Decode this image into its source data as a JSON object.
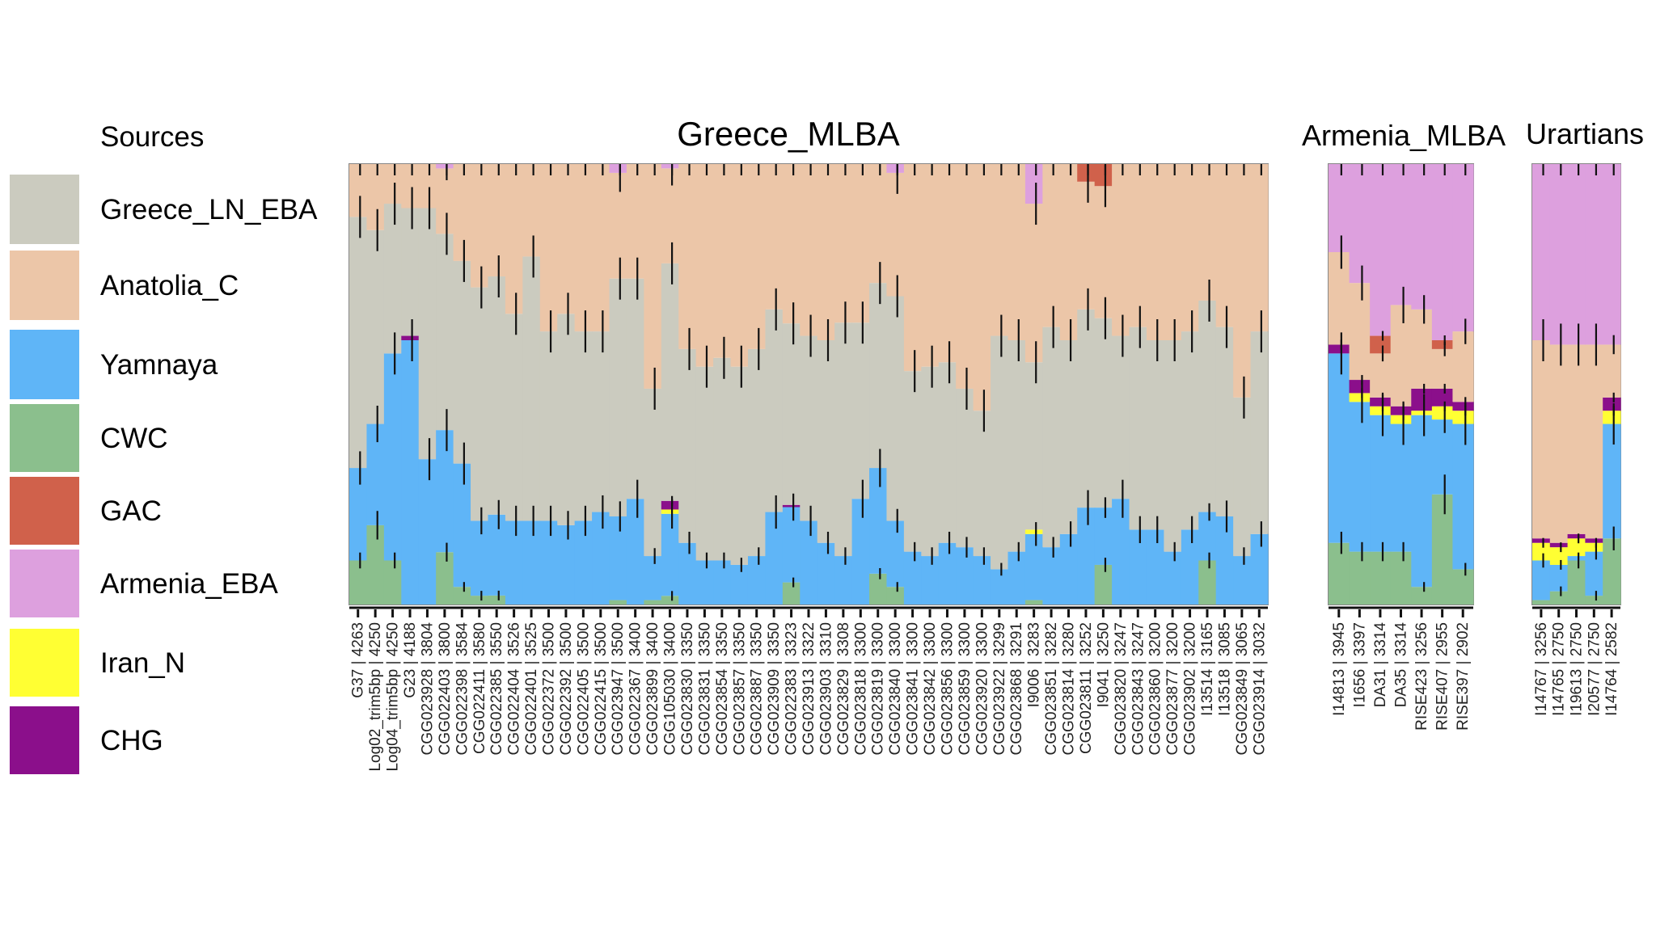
{
  "legend": {
    "title": "Sources",
    "items": [
      {
        "name": "Greece_LN_EBA",
        "color": "#cbcbbf"
      },
      {
        "name": "Anatolia_C",
        "color": "#ecc6a8"
      },
      {
        "name": "Yamnaya",
        "color": "#5fb5f7"
      },
      {
        "name": "CWC",
        "color": "#8bbf8d"
      },
      {
        "name": "GAC",
        "color": "#d0614b"
      },
      {
        "name": "Armenia_EBA",
        "color": "#dda0de"
      },
      {
        "name": "Iran_N",
        "color": "#ffff33"
      },
      {
        "name": "CHG",
        "color": "#8b0f8b"
      }
    ]
  },
  "chart_data": [
    {
      "type": "bar",
      "stacked": true,
      "title": "Greece_MLBA",
      "ylim": [
        0,
        1
      ],
      "source_order": [
        "CWC",
        "Yamnaya",
        "Iran_N",
        "CHG",
        "Greece_LN_EBA",
        "Anatolia_C",
        "GAC",
        "Armenia_EBA"
      ],
      "categories": [
        "G37 | 4263",
        "Log02_trim5bp | 4250",
        "Log04_trim5bp | 4250",
        "G23 | 4188",
        "CGG023928 | 3804",
        "CGG022403 | 3800",
        "CGG022398 | 3584",
        "CGG022411 | 3580",
        "CGG022385 | 3550",
        "CGG022404 | 3526",
        "CGG022401 | 3525",
        "CGG022372 | 3500",
        "CGG022392 | 3500",
        "CGG022405 | 3500",
        "CGG022415 | 3500",
        "CGG023947 | 3500",
        "CGG022367 | 3400",
        "CGG023899 | 3400",
        "CGG105030 | 3400",
        "CGG023830 | 3350",
        "CGG023831 | 3350",
        "CGG023854 | 3350",
        "CGG023857 | 3350",
        "CGG023887 | 3350",
        "CGG023909 | 3350",
        "CGG022383 | 3323",
        "CGG023913 | 3322",
        "CGG023903 | 3310",
        "CGG023829 | 3308",
        "CGG023818 | 3300",
        "CGG023819 | 3300",
        "CGG023840 | 3300",
        "CGG023841 | 3300",
        "CGG023842 | 3300",
        "CGG023856 | 3300",
        "CGG023859 | 3300",
        "CGG023920 | 3300",
        "CGG023922 | 3299",
        "CGG023868 | 3291",
        "I9006 | 3283",
        "CGG023851 | 3282",
        "CGG023814 | 3280",
        "CGG023811 | 3252",
        "I9041 | 3250",
        "CGG023820 | 3247",
        "CGG023843 | 3247",
        "CGG023860 | 3200",
        "CGG023877 | 3200",
        "CGG023902 | 3200",
        "I13514 | 3165",
        "I13518 | 3085",
        "CGG023849 | 3065",
        "CGG023914 | 3032"
      ],
      "series": [
        {
          "name": "CWC",
          "values": [
            0.1,
            0.18,
            0.1,
            0,
            0,
            0.12,
            0.04,
            0.02,
            0.02,
            0,
            0,
            0,
            0,
            0,
            0,
            0.01,
            0,
            0.01,
            0.02,
            0,
            0,
            0,
            0,
            0,
            0,
            0.05,
            0,
            0,
            0,
            0,
            0.07,
            0.04,
            0,
            0,
            0,
            0,
            0,
            0,
            0,
            0.01,
            0,
            0,
            0,
            0.09,
            0,
            0,
            0,
            0,
            0,
            0.1,
            0,
            0,
            0
          ]
        },
        {
          "name": "Yamnaya",
          "values": [
            0.21,
            0.23,
            0.47,
            0.6,
            0.33,
            0.28,
            0.28,
            0.17,
            0.18,
            0.19,
            0.19,
            0.19,
            0.18,
            0.19,
            0.21,
            0.19,
            0.24,
            0.1,
            0.19,
            0.14,
            0.1,
            0.1,
            0.09,
            0.11,
            0.21,
            0.17,
            0.19,
            0.14,
            0.11,
            0.24,
            0.24,
            0.15,
            0.12,
            0.11,
            0.14,
            0.13,
            0.11,
            0.08,
            0.12,
            0.15,
            0.13,
            0.16,
            0.22,
            0.13,
            0.24,
            0.17,
            0.17,
            0.12,
            0.17,
            0.11,
            0.2,
            0.11,
            0.16
          ]
        },
        {
          "name": "Iran_N",
          "values": [
            0,
            0,
            0,
            0,
            0,
            0,
            0,
            0,
            0,
            0,
            0,
            0,
            0,
            0,
            0,
            0,
            0,
            0,
            0.01,
            0,
            0,
            0,
            0,
            0,
            0,
            0,
            0,
            0,
            0,
            0,
            0,
            0,
            0,
            0,
            0,
            0,
            0,
            0,
            0,
            0.01,
            0,
            0,
            0,
            0,
            0,
            0,
            0,
            0,
            0,
            0,
            0,
            0,
            0
          ]
        },
        {
          "name": "CHG",
          "values": [
            0,
            0,
            0,
            0.01,
            0,
            0,
            0,
            0,
            0,
            0,
            0,
            0,
            0,
            0,
            0,
            0,
            0,
            0,
            0.02,
            0,
            0,
            0,
            0,
            0,
            0,
            0.005,
            0,
            0,
            0,
            0,
            0,
            0,
            0,
            0,
            0,
            0,
            0,
            0,
            0,
            0,
            0,
            0,
            0,
            0,
            0,
            0,
            0,
            0,
            0,
            0,
            0,
            0,
            0
          ]
        },
        {
          "name": "Greece_LN_EBA",
          "values": [
            0.57,
            0.44,
            0.34,
            0.29,
            0.57,
            0.45,
            0.46,
            0.53,
            0.53,
            0.47,
            0.6,
            0.43,
            0.48,
            0.43,
            0.41,
            0.54,
            0.5,
            0.38,
            0.55,
            0.44,
            0.44,
            0.46,
            0.45,
            0.47,
            0.46,
            0.41,
            0.42,
            0.46,
            0.53,
            0.4,
            0.42,
            0.51,
            0.41,
            0.43,
            0.41,
            0.36,
            0.33,
            0.53,
            0.48,
            0.38,
            0.5,
            0.44,
            0.45,
            0.43,
            0.37,
            0.46,
            0.43,
            0.48,
            0.45,
            0.48,
            0.43,
            0.36,
            0.46
          ]
        },
        {
          "name": "Anatolia_C",
          "values": [
            0.12,
            0.15,
            0.09,
            0.1,
            0.1,
            0.15,
            0.22,
            0.28,
            0.25,
            0.34,
            0.21,
            0.38,
            0.34,
            0.38,
            0.38,
            0.24,
            0.26,
            0.51,
            0.22,
            0.42,
            0.46,
            0.44,
            0.46,
            0.42,
            0.33,
            0.36,
            0.39,
            0.4,
            0.36,
            0.36,
            0.27,
            0.28,
            0.47,
            0.46,
            0.45,
            0.51,
            0.56,
            0.39,
            0.4,
            0.36,
            0.37,
            0.4,
            0.29,
            0.3,
            0.39,
            0.37,
            0.4,
            0.4,
            0.38,
            0.31,
            0.37,
            0.53,
            0.38
          ]
        },
        {
          "name": "GAC",
          "values": [
            0,
            0,
            0,
            0,
            0,
            0,
            0,
            0,
            0,
            0,
            0,
            0,
            0,
            0,
            0,
            0,
            0,
            0,
            0,
            0,
            0,
            0,
            0,
            0,
            0,
            0,
            0,
            0,
            0,
            0,
            0,
            0,
            0,
            0,
            0,
            0,
            0,
            0,
            0,
            0,
            0,
            0,
            0.04,
            0.05,
            0,
            0,
            0,
            0,
            0,
            0,
            0,
            0,
            0
          ]
        },
        {
          "name": "Armenia_EBA",
          "values": [
            0,
            0,
            0,
            0,
            0,
            0.01,
            0,
            0,
            0,
            0,
            0,
            0,
            0,
            0,
            0,
            0.02,
            0,
            0,
            0.01,
            0,
            0,
            0,
            0,
            0,
            0,
            0,
            0,
            0,
            0,
            0,
            0,
            0.02,
            0,
            0,
            0,
            0,
            0,
            0,
            0,
            0.09,
            0,
            0,
            0,
            0,
            0,
            0,
            0,
            0,
            0,
            0,
            0,
            0,
            0
          ]
        }
      ]
    },
    {
      "type": "bar",
      "stacked": true,
      "title": "Armenia_MLBA",
      "ylim": [
        0,
        1
      ],
      "source_order": [
        "CWC",
        "Yamnaya",
        "Iran_N",
        "CHG",
        "Greece_LN_EBA",
        "Anatolia_C",
        "GAC",
        "Armenia_EBA"
      ],
      "categories": [
        "I14813 | 3945",
        "I1656 | 3397",
        "DA31 | 3314",
        "DA35 | 3314",
        "RISE423 | 3256",
        "RISE407 | 2955",
        "RISE397 | 2902"
      ],
      "series": [
        {
          "name": "CWC",
          "values": [
            0.14,
            0.12,
            0.12,
            0.12,
            0.04,
            0.25,
            0.08
          ]
        },
        {
          "name": "Yamnaya",
          "values": [
            0.43,
            0.34,
            0.31,
            0.29,
            0.39,
            0.17,
            0.33
          ]
        },
        {
          "name": "Iran_N",
          "values": [
            0,
            0.02,
            0.02,
            0.02,
            0.01,
            0.03,
            0.03
          ]
        },
        {
          "name": "CHG",
          "values": [
            0.02,
            0.03,
            0.02,
            0.02,
            0.05,
            0.04,
            0.02
          ]
        },
        {
          "name": "Greece_LN_EBA",
          "values": [
            0,
            0,
            0,
            0,
            0,
            0,
            0
          ]
        },
        {
          "name": "Anatolia_C",
          "values": [
            0.21,
            0.22,
            0.1,
            0.23,
            0.18,
            0.09,
            0.16
          ]
        },
        {
          "name": "GAC",
          "values": [
            0,
            0,
            0.04,
            0,
            0,
            0.02,
            0
          ]
        },
        {
          "name": "Armenia_EBA",
          "values": [
            0.2,
            0.27,
            0.39,
            0.32,
            0.33,
            0.4,
            0.38
          ]
        }
      ]
    },
    {
      "type": "bar",
      "stacked": true,
      "title": "Urartians",
      "ylim": [
        0,
        1
      ],
      "source_order": [
        "CWC",
        "Yamnaya",
        "Iran_N",
        "CHG",
        "Greece_LN_EBA",
        "Anatolia_C",
        "GAC",
        "Armenia_EBA"
      ],
      "categories": [
        "I14767 | 3256",
        "I14765 | 2750",
        "I19613 | 2750",
        "I20577 | 2750",
        "I14764 | 2582"
      ],
      "series": [
        {
          "name": "CWC",
          "values": [
            0.01,
            0.03,
            0.1,
            0.02,
            0.15
          ]
        },
        {
          "name": "Yamnaya",
          "values": [
            0.09,
            0.06,
            0.01,
            0.1,
            0.26
          ]
        },
        {
          "name": "Iran_N",
          "values": [
            0.04,
            0.04,
            0.04,
            0.02,
            0.03
          ]
        },
        {
          "name": "CHG",
          "values": [
            0.01,
            0.01,
            0.01,
            0.01,
            0.03
          ]
        },
        {
          "name": "Greece_LN_EBA",
          "values": [
            0,
            0,
            0,
            0,
            0
          ]
        },
        {
          "name": "Anatolia_C",
          "values": [
            0.45,
            0.45,
            0.43,
            0.44,
            0.12
          ]
        },
        {
          "name": "GAC",
          "values": [
            0,
            0,
            0,
            0,
            0
          ]
        },
        {
          "name": "Armenia_EBA",
          "values": [
            0.4,
            0.41,
            0.41,
            0.41,
            0.41
          ]
        }
      ]
    }
  ]
}
